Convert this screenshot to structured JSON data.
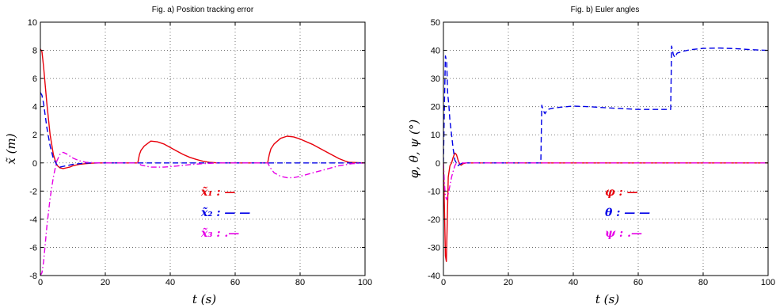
{
  "colors": {
    "red": "#e8000b",
    "blue": "#0000e6",
    "magenta": "#e600e6",
    "grid": "#555555"
  },
  "chart_data": [
    {
      "type": "line",
      "title": "Fig. a) Position tracking error",
      "xlabel": "t (s)",
      "ylabel": "x̃ (m)",
      "xlim": [
        0,
        100
      ],
      "ylim": [
        -8,
        10
      ],
      "xticks": [
        0,
        20,
        40,
        60,
        80,
        100
      ],
      "yticks": [
        -8,
        -6,
        -4,
        -2,
        0,
        2,
        4,
        6,
        8,
        10
      ],
      "grid": true,
      "legend": {
        "placement": "inside-center",
        "entries": [
          {
            "label": "x̃₁ : —",
            "series": 0
          },
          {
            "label": "x̃₂ : — —",
            "series": 1
          },
          {
            "label": "x̃₃ : .—",
            "series": 2
          }
        ]
      },
      "series": [
        {
          "style": "solid",
          "color": "red",
          "x": [
            0,
            0.5,
            1,
            2,
            3,
            4,
            5,
            6,
            7,
            8,
            9,
            10,
            12,
            14,
            16,
            18,
            20,
            30,
            30.5,
            31,
            32,
            34,
            36,
            38,
            40,
            42,
            44,
            46,
            48,
            50,
            52,
            54,
            55,
            60,
            70,
            70.5,
            71,
            72,
            74,
            76,
            78,
            80,
            84,
            88,
            90,
            92,
            94,
            95,
            100
          ],
          "y": [
            8.1,
            7.9,
            6.8,
            4.2,
            2.0,
            0.6,
            -0.15,
            -0.35,
            -0.4,
            -0.35,
            -0.3,
            -0.2,
            -0.1,
            -0.05,
            -0.02,
            0,
            0,
            0,
            0.6,
            0.9,
            1.2,
            1.55,
            1.5,
            1.35,
            1.1,
            0.85,
            0.6,
            0.4,
            0.25,
            0.12,
            0.05,
            0.01,
            0,
            0,
            0,
            0.6,
            1.0,
            1.35,
            1.75,
            1.9,
            1.85,
            1.7,
            1.3,
            0.8,
            0.55,
            0.3,
            0.12,
            0.05,
            0
          ]
        },
        {
          "style": "dashed",
          "color": "blue",
          "x": [
            0,
            0.5,
            1,
            2,
            3,
            4,
            5,
            6,
            7,
            8,
            10,
            12,
            15,
            20,
            100
          ],
          "y": [
            5.0,
            4.8,
            4.2,
            2.5,
            1.2,
            0.3,
            -0.1,
            -0.3,
            -0.25,
            -0.2,
            -0.1,
            -0.05,
            0,
            0,
            0
          ]
        },
        {
          "style": "dashdot",
          "color": "magenta",
          "x": [
            0,
            0.5,
            1,
            2,
            3,
            4,
            5,
            6,
            7,
            8,
            9,
            10,
            12,
            14,
            16,
            18,
            20,
            30,
            31,
            34,
            38,
            42,
            46,
            50,
            54,
            55,
            70,
            71,
            72,
            74,
            76,
            78,
            80,
            84,
            88,
            92,
            96,
            100
          ],
          "y": [
            -8.0,
            -7.8,
            -7.0,
            -4.5,
            -2.5,
            -1.0,
            0.1,
            0.6,
            0.75,
            0.65,
            0.5,
            0.35,
            0.15,
            0.05,
            0.02,
            0,
            0,
            0,
            -0.15,
            -0.3,
            -0.3,
            -0.22,
            -0.12,
            -0.05,
            -0.01,
            0,
            0,
            -0.4,
            -0.7,
            -0.95,
            -1.05,
            -1.05,
            -0.95,
            -0.7,
            -0.45,
            -0.2,
            -0.05,
            0
          ]
        }
      ]
    },
    {
      "type": "line",
      "title": "Fig. b) Euler angles",
      "xlabel": "t (s)",
      "ylabel": "φ, θ, ψ (°)",
      "xlim": [
        0,
        100
      ],
      "ylim": [
        -40,
        50
      ],
      "xticks": [
        0,
        20,
        40,
        60,
        80,
        100
      ],
      "yticks": [
        -40,
        -30,
        -20,
        -10,
        0,
        10,
        20,
        30,
        40,
        50
      ],
      "grid": true,
      "legend": {
        "placement": "inside-center",
        "entries": [
          {
            "label": "φ : —",
            "series": 0
          },
          {
            "label": "θ : — —",
            "series": 1
          },
          {
            "label": "ψ : .—",
            "series": 2
          }
        ]
      },
      "series": [
        {
          "style": "solid",
          "color": "red",
          "x": [
            0,
            0.3,
            0.6,
            0.9,
            1.2,
            1.5,
            2,
            2.5,
            3,
            3.5,
            4,
            4.5,
            5,
            5.5,
            6,
            7,
            8,
            100
          ],
          "y": [
            0,
            -15,
            -33,
            -35,
            -20,
            -5,
            -1,
            0,
            2,
            3.5,
            3.0,
            1.0,
            -0.5,
            -0.8,
            -0.3,
            0,
            0,
            0
          ]
        },
        {
          "style": "dashed",
          "color": "blue",
          "x": [
            0,
            0.3,
            0.6,
            1,
            1.3,
            1.7,
            2,
            2.5,
            3,
            3.5,
            4,
            4.5,
            5,
            6,
            8,
            10,
            20,
            30,
            30.3,
            30.8,
            31.3,
            32,
            34,
            36,
            40,
            45,
            50,
            55,
            60,
            65,
            70,
            70.3,
            70.8,
            71.3,
            72,
            74,
            76,
            80,
            85,
            90,
            95,
            100
          ],
          "y": [
            0,
            20,
            38,
            36,
            25,
            20,
            15,
            10,
            5,
            1,
            0,
            -1,
            -0.5,
            0,
            0,
            0,
            0,
            0,
            20.5,
            18.5,
            17.5,
            19,
            19.5,
            19.8,
            20.2,
            20.0,
            19.6,
            19.3,
            19.0,
            19.0,
            19.0,
            41.5,
            38.5,
            37.5,
            39,
            39.7,
            40.2,
            40.7,
            40.8,
            40.6,
            40.2,
            40.0
          ]
        },
        {
          "style": "dashdot",
          "color": "magenta",
          "x": [
            0,
            0.3,
            0.6,
            1,
            1.5,
            2,
            2.5,
            3,
            3.5,
            4,
            5,
            6,
            8,
            100
          ],
          "y": [
            0,
            -7,
            -12,
            -13,
            -11,
            -8,
            -5,
            -3,
            -1,
            0,
            0.2,
            0,
            0,
            0
          ]
        }
      ]
    }
  ]
}
